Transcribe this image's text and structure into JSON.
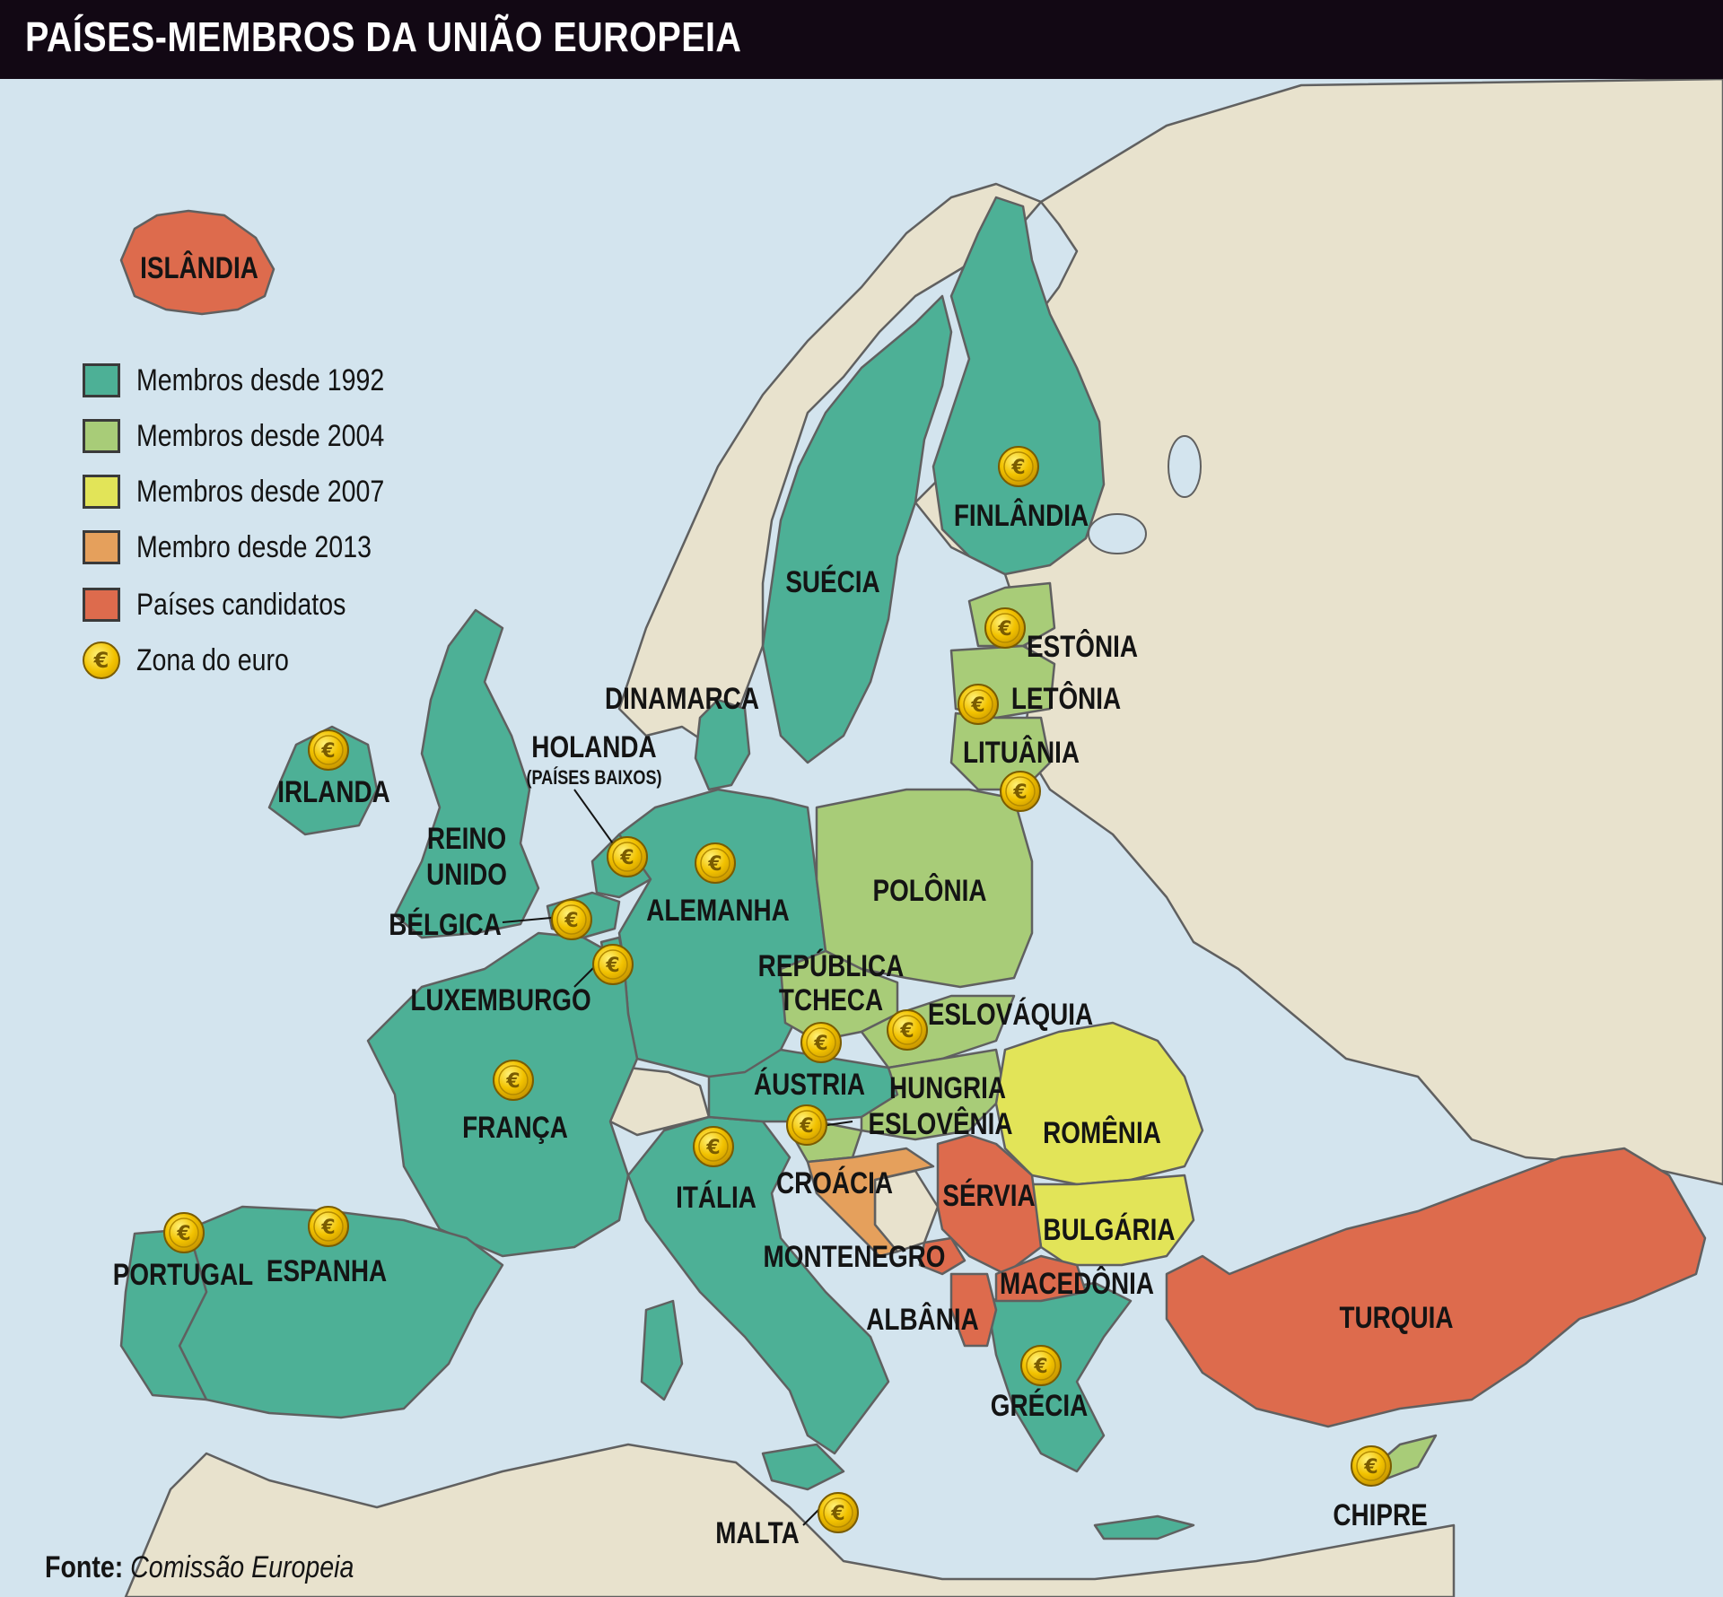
{
  "title": "PAÍSES-MEMBROS DA UNIÃO EUROPEIA",
  "colors": {
    "sea": "#d3e4ee",
    "land_other": "#e8e2cd",
    "member_1992": "#4db096",
    "member_2004": "#a8cc78",
    "member_2007": "#e2e458",
    "member_2013": "#e5a05c",
    "candidate": "#dd6b4d",
    "border": "#606060",
    "header": "#120814"
  },
  "legend": [
    {
      "label": "Membros desde 1992",
      "color": "#4db096"
    },
    {
      "label": "Membros desde 2004",
      "color": "#a8cc78"
    },
    {
      "label": "Membros desde 2007",
      "color": "#e2e458"
    },
    {
      "label": "Membro desde 2013",
      "color": "#e5a05c"
    },
    {
      "label": "Países candidatos",
      "color": "#dd6b4d"
    },
    {
      "label": "Zona do euro",
      "icon": "euro-coin-icon"
    }
  ],
  "countries": {
    "islandia": "ISLÂNDIA",
    "finlandia": "FINLÂNDIA",
    "suecia": "SUÉCIA",
    "estonia": "ESTÔNIA",
    "letonia": "LETÔNIA",
    "lituania": "LITUÂNIA",
    "dinamarca": "DINAMARCA",
    "holanda": "HOLANDA",
    "holanda_sub": "(PAÍSES BAIXOS)",
    "irlanda": "IRLANDA",
    "reino_unido_1": "REINO",
    "reino_unido_2": "UNIDO",
    "belgica": "BÉLGICA",
    "alemanha": "ALEMANHA",
    "polonia": "POLÔNIA",
    "luxemburgo": "LUXEMBURGO",
    "republica_tcheca_1": "REPÚBLICA",
    "republica_tcheca_2": "TCHECA",
    "eslovaquia": "ESLOVÁQUIA",
    "austria": "ÁUSTRIA",
    "hungria": "HUNGRIA",
    "eslovenia": "ESLOVÊNIA",
    "romenia": "ROMÊNIA",
    "franca": "FRANÇA",
    "italia": "ITÁLIA",
    "croacia": "CROÁCIA",
    "servia": "SÉRVIA",
    "bulgaria": "BULGÁRIA",
    "portugal": "PORTUGAL",
    "espanha": "ESPANHA",
    "montenegro": "MONTENEGRO",
    "macedonia": "MACEDÔNIA",
    "albania": "ALBÂNIA",
    "turquia": "TURQUIA",
    "grecia": "GRÉCIA",
    "chipre": "CHIPRE",
    "malta": "MALTA"
  },
  "euro_zone_countries": [
    "Finlândia",
    "Estônia",
    "Letônia",
    "Lituânia",
    "Irlanda",
    "Holanda",
    "Bélgica",
    "Alemanha",
    "Luxemburgo",
    "Eslováquia",
    "Áustria",
    "França",
    "Eslovênia",
    "Itália",
    "Portugal",
    "Espanha",
    "Grécia",
    "Chipre",
    "Malta"
  ],
  "source_label": "Fonte:",
  "source_value": "Comissão Europeia"
}
